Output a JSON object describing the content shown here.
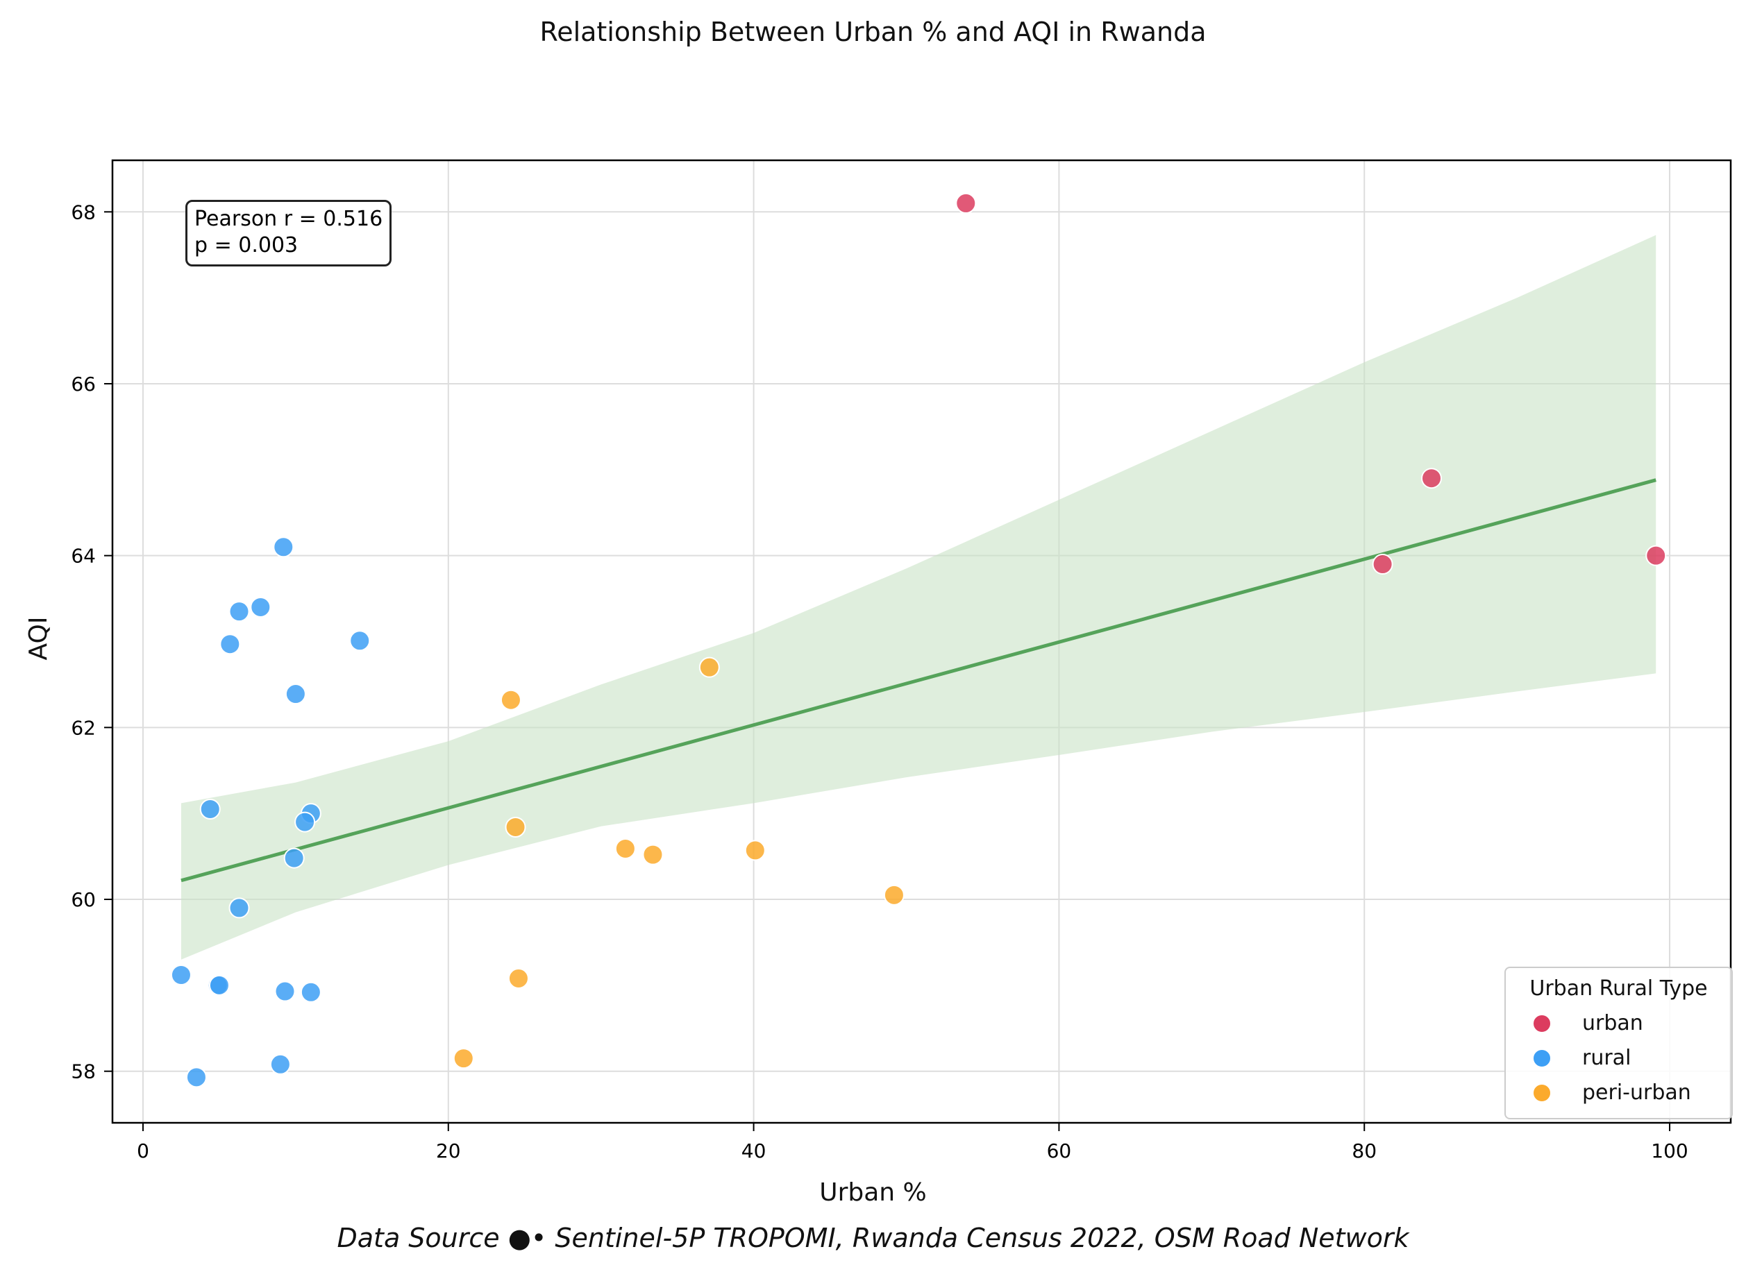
{
  "chart_data": {
    "type": "scatter",
    "title": "Relationship Between Urban % and AQI in Rwanda",
    "xlabel": "Urban %",
    "ylabel": "AQI",
    "xlim": [
      -2,
      104
    ],
    "ylim": [
      57.4,
      68.6
    ],
    "xticks": [
      0,
      20,
      40,
      60,
      80,
      100
    ],
    "yticks": [
      58,
      60,
      62,
      64,
      66,
      68
    ],
    "grid": true,
    "legend": {
      "title": "Urban Rural Type",
      "placement": "lower-right"
    },
    "series": [
      {
        "name": "urban",
        "color": "#dc3c5f",
        "points": [
          {
            "x": 53.9,
            "y": 68.1
          },
          {
            "x": 84.4,
            "y": 64.9
          },
          {
            "x": 81.2,
            "y": 63.9
          },
          {
            "x": 99.1,
            "y": 64.0
          }
        ]
      },
      {
        "name": "rural",
        "color": "#3d9ff5",
        "points": [
          {
            "x": 9.2,
            "y": 64.1
          },
          {
            "x": 7.7,
            "y": 63.4
          },
          {
            "x": 6.3,
            "y": 63.35
          },
          {
            "x": 5.7,
            "y": 62.97
          },
          {
            "x": 14.2,
            "y": 63.01
          },
          {
            "x": 10.0,
            "y": 62.39
          },
          {
            "x": 4.4,
            "y": 61.05
          },
          {
            "x": 11.0,
            "y": 61.0
          },
          {
            "x": 10.6,
            "y": 60.9
          },
          {
            "x": 9.9,
            "y": 60.48
          },
          {
            "x": 6.3,
            "y": 59.9
          },
          {
            "x": 2.5,
            "y": 59.12
          },
          {
            "x": 4.9,
            "y": 59.0
          },
          {
            "x": 5.0,
            "y": 59.0
          },
          {
            "x": 9.3,
            "y": 58.93
          },
          {
            "x": 11.0,
            "y": 58.92
          },
          {
            "x": 9.0,
            "y": 58.08
          },
          {
            "x": 3.5,
            "y": 57.93
          }
        ]
      },
      {
        "name": "peri-urban",
        "color": "#fbaa2c",
        "points": [
          {
            "x": 37.1,
            "y": 62.7
          },
          {
            "x": 24.1,
            "y": 62.32
          },
          {
            "x": 24.4,
            "y": 60.84
          },
          {
            "x": 31.6,
            "y": 60.59
          },
          {
            "x": 33.4,
            "y": 60.52
          },
          {
            "x": 40.1,
            "y": 60.57
          },
          {
            "x": 49.2,
            "y": 60.05
          },
          {
            "x": 24.6,
            "y": 59.08
          },
          {
            "x": 21.0,
            "y": 58.15
          }
        ]
      }
    ],
    "regression": {
      "color": "#55a35a",
      "band_color": "#c9e3c6",
      "line": [
        {
          "x": 2.5,
          "y": 60.22
        },
        {
          "x": 99.1,
          "y": 64.88
        }
      ],
      "band_upper": [
        {
          "x": 2.5,
          "y": 61.12
        },
        {
          "x": 10,
          "y": 61.36
        },
        {
          "x": 20,
          "y": 61.84
        },
        {
          "x": 30,
          "y": 62.5
        },
        {
          "x": 40,
          "y": 63.1
        },
        {
          "x": 50,
          "y": 63.85
        },
        {
          "x": 60,
          "y": 64.65
        },
        {
          "x": 70,
          "y": 65.45
        },
        {
          "x": 80,
          "y": 66.25
        },
        {
          "x": 90,
          "y": 67.0
        },
        {
          "x": 99.1,
          "y": 67.73
        }
      ],
      "band_lower": [
        {
          "x": 2.5,
          "y": 59.3
        },
        {
          "x": 10,
          "y": 59.85
        },
        {
          "x": 20,
          "y": 60.4
        },
        {
          "x": 30,
          "y": 60.85
        },
        {
          "x": 40,
          "y": 61.12
        },
        {
          "x": 50,
          "y": 61.42
        },
        {
          "x": 60,
          "y": 61.68
        },
        {
          "x": 70,
          "y": 61.95
        },
        {
          "x": 80,
          "y": 62.18
        },
        {
          "x": 90,
          "y": 62.42
        },
        {
          "x": 99.1,
          "y": 62.63
        }
      ]
    },
    "annotation": {
      "line1": "Pearson r = 0.516",
      "line2": "p = 0.003"
    },
    "source": "Data Source ●• Sentinel-5P TROPOMI, Rwanda Census 2022, OSM Road Network"
  }
}
